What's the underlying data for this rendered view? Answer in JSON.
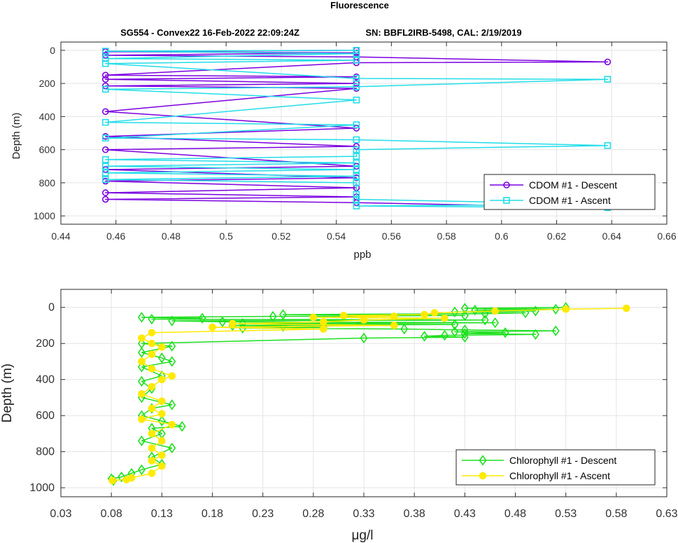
{
  "figure": {
    "title": "Fluorescence",
    "subtitle_left": "SG554 - Convex22 16-Feb-2022 22:09:24Z",
    "subtitle_right": "SN: BBFL2IRB-5498, CAL: 2/19/2019"
  },
  "chart_data": [
    {
      "type": "line",
      "xlabel": "ppb",
      "ylabel": "Depth (m)",
      "xlim": [
        0.44,
        0.66
      ],
      "ylim": [
        1050,
        -50
      ],
      "y_reversed": true,
      "xticks": [
        "0.44",
        "0.46",
        "0.48",
        "0.5",
        "0.52",
        "0.54",
        "0.56",
        "0.58",
        "0.6",
        "0.62",
        "0.64",
        "0.66"
      ],
      "yticks": [
        "0",
        "200",
        "400",
        "600",
        "800",
        "1000"
      ],
      "grid": true,
      "legend_position": "bottom-right",
      "series": [
        {
          "name": "CDOM #1 - Descent",
          "color": "#7b00e0",
          "marker": "circle",
          "depth": [
            0,
            8,
            15,
            30,
            40,
            70,
            75,
            150,
            160,
            175,
            200,
            215,
            230,
            370,
            470,
            520,
            580,
            600,
            700,
            720,
            770,
            790,
            830,
            860,
            885,
            900,
            920,
            950
          ],
          "x": [
            0.5473,
            0.4562,
            0.5473,
            0.4562,
            0.5473,
            0.6385,
            0.5473,
            0.4562,
            0.5473,
            0.4562,
            0.5473,
            0.4562,
            0.5473,
            0.4562,
            0.5473,
            0.4562,
            0.5473,
            0.4562,
            0.5473,
            0.4562,
            0.5473,
            0.4562,
            0.5473,
            0.4562,
            0.5473,
            0.4562,
            0.5473,
            0.6385
          ]
        },
        {
          "name": "CDOM #1 - Ascent",
          "color": "#22dde8",
          "marker": "square",
          "depth": [
            950,
            940,
            930,
            900,
            870,
            800,
            780,
            760,
            740,
            720,
            700,
            680,
            660,
            640,
            600,
            575,
            540,
            530,
            450,
            435,
            300,
            235,
            220,
            175,
            170,
            80,
            60,
            50,
            20,
            5,
            0
          ],
          "x": [
            0.6385,
            0.5473,
            0.6385,
            0.5473,
            0.5473,
            0.5473,
            0.4562,
            0.5473,
            0.4562,
            0.5473,
            0.4562,
            0.5473,
            0.4562,
            0.5473,
            0.5473,
            0.6385,
            0.5473,
            0.4562,
            0.5473,
            0.4562,
            0.5473,
            0.4562,
            0.5473,
            0.6385,
            0.5473,
            0.4562,
            0.5473,
            0.4562,
            0.5473,
            0.4562,
            0.5473
          ]
        }
      ]
    },
    {
      "type": "line",
      "xlabel": "μg/l",
      "ylabel": "Depth (m)",
      "xlim": [
        0.03,
        0.63
      ],
      "ylim": [
        1050,
        -100
      ],
      "y_reversed": true,
      "xticks": [
        "0.03",
        "0.08",
        "0.13",
        "0.18",
        "0.23",
        "0.28",
        "0.33",
        "0.38",
        "0.43",
        "0.48",
        "0.53",
        "0.58",
        "0.63"
      ],
      "yticks": [
        "0",
        "200",
        "400",
        "600",
        "800",
        "1000"
      ],
      "grid": true,
      "legend_position": "bottom-right",
      "series": [
        {
          "name": "Chlorophyll #1 - Descent",
          "color": "#1ee01e",
          "marker": "diamond",
          "depth": [
            0,
            5,
            10,
            15,
            20,
            25,
            30,
            35,
            40,
            45,
            50,
            55,
            60,
            65,
            70,
            75,
            80,
            85,
            90,
            95,
            100,
            105,
            110,
            115,
            120,
            125,
            130,
            135,
            140,
            145,
            150,
            155,
            160,
            165,
            170,
            200,
            215,
            250,
            280,
            300,
            330,
            380,
            410,
            450,
            500,
            540,
            560,
            600,
            630,
            660,
            670,
            700,
            740,
            780,
            830,
            870,
            900,
            920,
            940,
            950,
            960
          ],
          "x": [
            0.53,
            0.43,
            0.52,
            0.44,
            0.5,
            0.42,
            0.49,
            0.45,
            0.25,
            0.43,
            0.24,
            0.11,
            0.17,
            0.12,
            0.45,
            0.14,
            0.19,
            0.46,
            0.21,
            0.42,
            0.2,
            0.25,
            0.29,
            0.21,
            0.37,
            0.43,
            0.52,
            0.42,
            0.47,
            0.43,
            0.5,
            0.41,
            0.39,
            0.43,
            0.33,
            0.11,
            0.14,
            0.11,
            0.13,
            0.14,
            0.11,
            0.13,
            0.11,
            0.12,
            0.11,
            0.14,
            0.12,
            0.11,
            0.13,
            0.15,
            0.12,
            0.13,
            0.11,
            0.14,
            0.12,
            0.13,
            0.11,
            0.1,
            0.09,
            0.08,
            0.082
          ]
        },
        {
          "name": "Chlorophyll #1 - Ascent",
          "color": "#ffea00",
          "marker": "circle",
          "depth": [
            960,
            955,
            945,
            920,
            880,
            850,
            820,
            780,
            740,
            700,
            650,
            620,
            590,
            560,
            520,
            480,
            440,
            400,
            380,
            340,
            300,
            260,
            220,
            200,
            170,
            140,
            120,
            110,
            100,
            90,
            80,
            70,
            60,
            55,
            50,
            45,
            40,
            30,
            20,
            10,
            5
          ],
          "x": [
            0.081,
            0.095,
            0.1,
            0.12,
            0.13,
            0.12,
            0.13,
            0.12,
            0.13,
            0.12,
            0.14,
            0.11,
            0.13,
            0.12,
            0.13,
            0.11,
            0.12,
            0.13,
            0.14,
            0.12,
            0.11,
            0.12,
            0.13,
            0.12,
            0.11,
            0.12,
            0.29,
            0.18,
            0.36,
            0.2,
            0.29,
            0.33,
            0.41,
            0.28,
            0.36,
            0.31,
            0.39,
            0.4,
            0.46,
            0.53,
            0.59
          ]
        }
      ]
    }
  ]
}
